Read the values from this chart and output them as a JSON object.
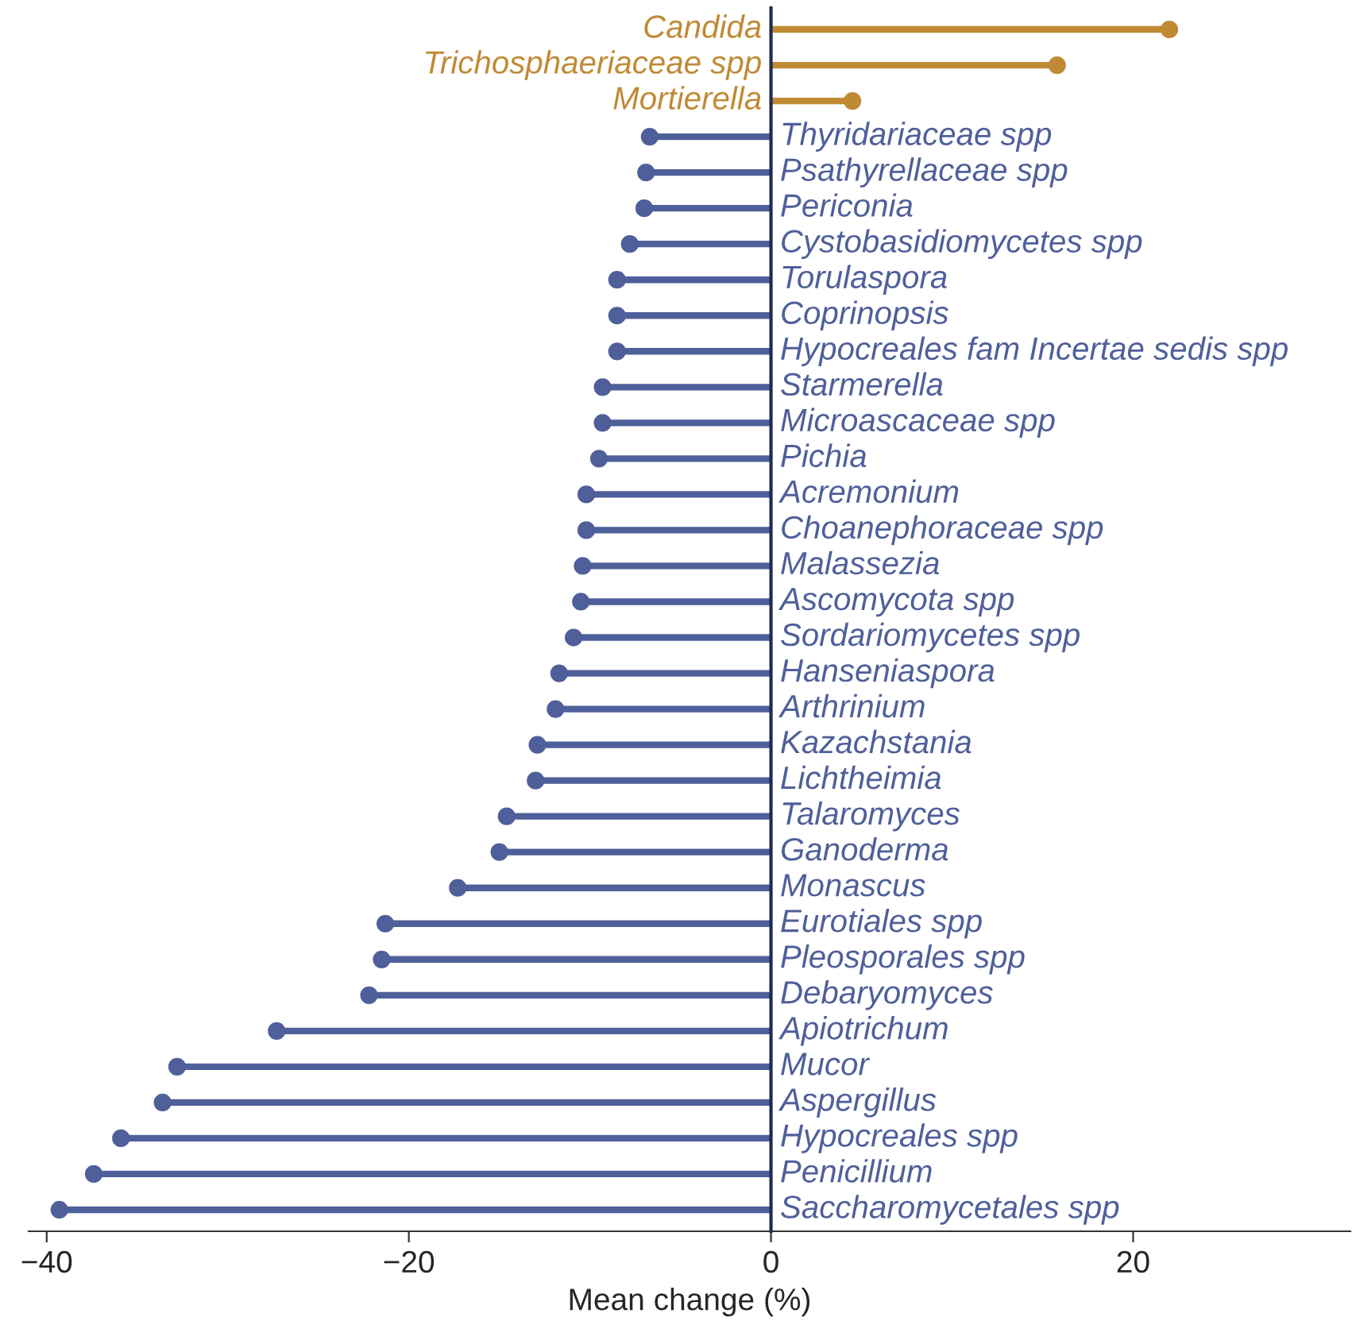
{
  "chart_data": {
    "type": "lollipop",
    "orientation": "horizontal",
    "xlabel": "Mean change (%)",
    "categories": [
      "Candida",
      "Trichosphaeriaceae spp",
      "Mortierella",
      "Thyridariaceae spp",
      "Psathyrellaceae spp",
      "Periconia",
      "Cystobasidiomycetes spp",
      "Torulaspora",
      "Coprinopsis",
      "Hypocreales fam Incertae sedis spp",
      "Starmerella",
      "Microascaceae spp",
      "Pichia",
      "Acremonium",
      "Choanephoraceae spp",
      "Malassezia",
      "Ascomycota spp",
      "Sordariomycetes spp",
      "Hanseniaspora",
      "Arthrinium",
      "Kazachstania",
      "Lichtheimia",
      "Talaromyces",
      "Ganoderma",
      "Monascus",
      "Eurotiales spp",
      "Pleosporales spp",
      "Debaryomyces",
      "Apiotrichum",
      "Mucor",
      "Aspergillus",
      "Hypocreales spp",
      "Penicillium",
      "Saccharomycetales spp"
    ],
    "values": [
      22.0,
      15.8,
      4.5,
      -6.7,
      -6.9,
      -7.0,
      -7.8,
      -8.5,
      -8.5,
      -8.5,
      -9.3,
      -9.3,
      -9.5,
      -10.2,
      -10.2,
      -10.4,
      -10.5,
      -10.9,
      -11.7,
      -11.9,
      -12.9,
      -13.0,
      -14.6,
      -15.0,
      -17.3,
      -21.3,
      -21.5,
      -22.2,
      -27.3,
      -32.8,
      -33.6,
      -35.9,
      -37.4,
      -39.3
    ],
    "colors": [
      "#c08a35",
      "#c08a35",
      "#c08a35",
      "#4f5f9a",
      "#4f5f9a",
      "#4f5f9a",
      "#4f5f9a",
      "#4f5f9a",
      "#4f5f9a",
      "#4f5f9a",
      "#4f5f9a",
      "#4f5f9a",
      "#4f5f9a",
      "#4f5f9a",
      "#4f5f9a",
      "#4f5f9a",
      "#4f5f9a",
      "#4f5f9a",
      "#4f5f9a",
      "#4f5f9a",
      "#4f5f9a",
      "#4f5f9a",
      "#4f5f9a",
      "#4f5f9a",
      "#4f5f9a",
      "#4f5f9a",
      "#4f5f9a",
      "#4f5f9a",
      "#4f5f9a",
      "#4f5f9a",
      "#4f5f9a",
      "#4f5f9a",
      "#4f5f9a",
      "#4f5f9a"
    ],
    "xlim": [
      -41,
      32
    ],
    "xticks": [
      {
        "value": -40,
        "label": "−40"
      },
      {
        "value": -20,
        "label": "−20"
      },
      0,
      20
    ],
    "marker": "circle",
    "grid": false,
    "legend": false
  }
}
